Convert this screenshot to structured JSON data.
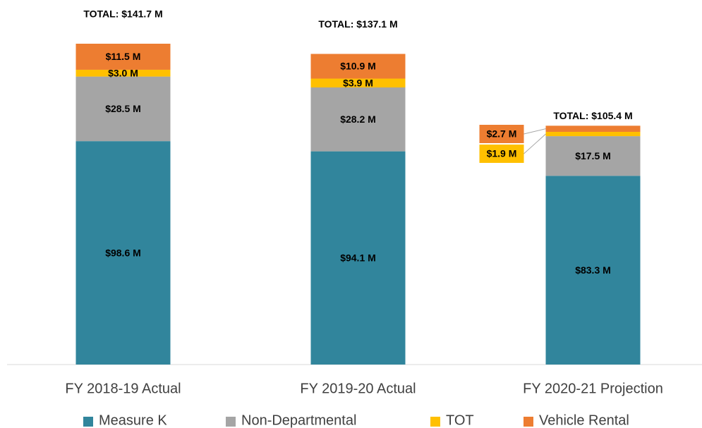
{
  "chart_data": {
    "type": "stacked_bar",
    "categories": [
      "FY 2018-19 Actual",
      "FY 2019-20 Actual",
      "FY 2020-21 Projection"
    ],
    "series": [
      {
        "name": "Measure K",
        "color": "#31859c",
        "values": [
          98.6,
          94.1,
          83.3
        ],
        "value_labels": [
          "$98.6 M",
          "$94.1 M",
          "$83.3 M"
        ]
      },
      {
        "name": "Non-Departmental",
        "color": "#a5a5a5",
        "values": [
          28.5,
          28.2,
          17.5
        ],
        "value_labels": [
          "$28.5 M",
          "$28.2 M",
          "$17.5 M"
        ]
      },
      {
        "name": "TOT",
        "color": "#ffc000",
        "values": [
          3.0,
          3.9,
          1.9
        ],
        "value_labels": [
          "$3.0 M",
          "$3.9 M",
          "$1.9 M"
        ]
      },
      {
        "name": "Vehicle Rental",
        "color": "#ed7d31",
        "values": [
          11.5,
          10.9,
          2.7
        ],
        "value_labels": [
          "$11.5 M",
          "$10.9 M",
          "$2.7 M"
        ]
      }
    ],
    "total_labels": [
      "TOTAL: $141.7 M",
      "TOTAL: $137.1 M",
      "TOTAL: $105.4 M"
    ],
    "ylim": [
      0,
      150
    ]
  }
}
